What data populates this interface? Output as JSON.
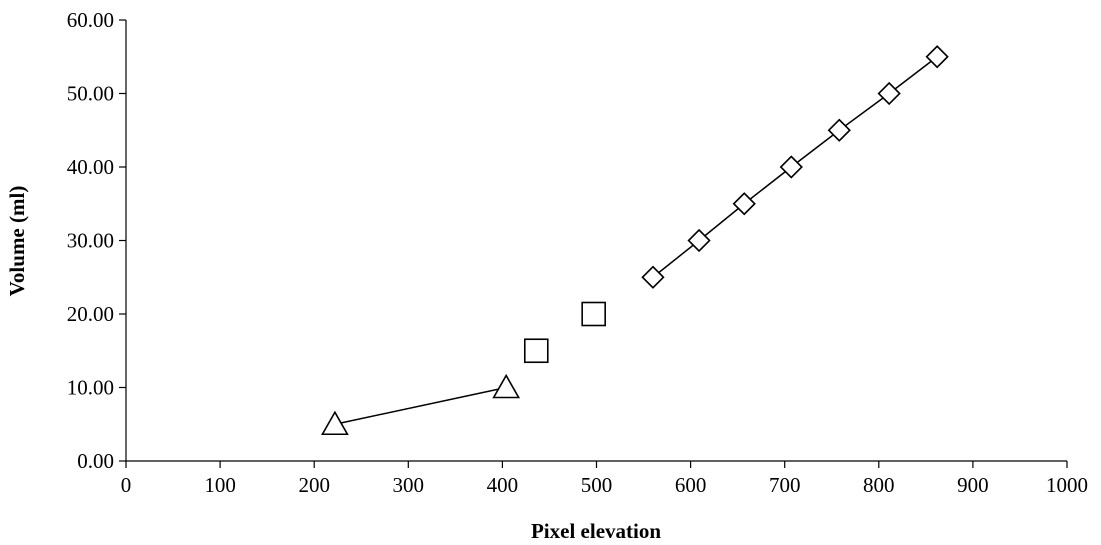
{
  "chart_data": {
    "type": "scatter",
    "title": "",
    "xlabel": "Pixel elevation",
    "ylabel": "Volume (ml)",
    "xlim": [
      0,
      1000
    ],
    "ylim": [
      0,
      60
    ],
    "x_ticks": [
      "0",
      "100",
      "200",
      "300",
      "400",
      "500",
      "600",
      "700",
      "800",
      "900",
      "1000"
    ],
    "y_ticks": [
      "0.00",
      "10.00",
      "20.00",
      "30.00",
      "40.00",
      "50.00",
      "60.00"
    ],
    "grid": false,
    "legend": "none",
    "series": [
      {
        "marker": "triangle",
        "connected": true,
        "x": [
          222,
          404
        ],
        "y": [
          5,
          10
        ]
      },
      {
        "marker": "square",
        "connected": false,
        "x": [
          436,
          497
        ],
        "y": [
          15,
          20
        ]
      },
      {
        "marker": "diamond",
        "connected": true,
        "x": [
          560,
          609,
          657,
          707,
          758,
          811,
          862
        ],
        "y": [
          25,
          30,
          35,
          40,
          45,
          50,
          55
        ]
      }
    ]
  }
}
